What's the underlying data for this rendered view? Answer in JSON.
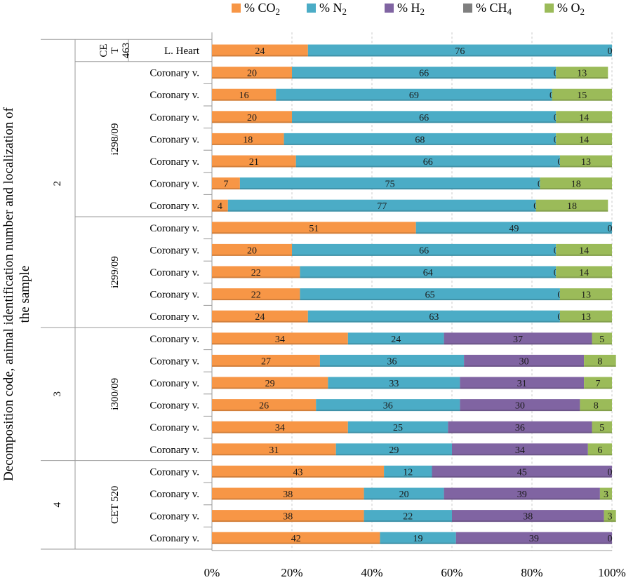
{
  "chart_data": {
    "type": "bar",
    "orientation": "horizontal",
    "stacked": "percent",
    "title": "",
    "ylabel": "Decomposition code, animal identification number and localization of the sample",
    "xlabel": "",
    "xlim": [
      0,
      100
    ],
    "xticks": [
      "0%",
      "20%",
      "40%",
      "60%",
      "80%",
      "100%"
    ],
    "legend_position": "top",
    "grid": true,
    "series": [
      {
        "name": "% CO",
        "sub": "2",
        "color": "#F79646",
        "values": [
          24,
          20,
          16,
          20,
          18,
          21,
          7,
          4,
          51,
          20,
          22,
          22,
          24,
          34,
          27,
          29,
          26,
          34,
          31,
          43,
          38,
          38,
          42
        ]
      },
      {
        "name": "% N",
        "sub": "2",
        "color": "#4BACC6",
        "values": [
          76,
          66,
          69,
          66,
          68,
          66,
          75,
          77,
          49,
          66,
          64,
          65,
          63,
          24,
          36,
          33,
          36,
          25,
          29,
          12,
          20,
          22,
          19
        ]
      },
      {
        "name": "% H",
        "sub": "2",
        "color": "#8064A2",
        "values": [
          0,
          0,
          0,
          0,
          0,
          0,
          0,
          0,
          0,
          0,
          0,
          0,
          0,
          37,
          30,
          31,
          30,
          36,
          34,
          45,
          39,
          38,
          39
        ]
      },
      {
        "name": "% CH",
        "sub": "4",
        "color": "#7F7F7F",
        "values": [
          0,
          0,
          0,
          0,
          0,
          0,
          0,
          0,
          0,
          0,
          0,
          0,
          0,
          0,
          0,
          0,
          0,
          0,
          0,
          0,
          0,
          0,
          0
        ]
      },
      {
        "name": "% O",
        "sub": "2",
        "color": "#9BBB59",
        "values": [
          0,
          13,
          15,
          14,
          14,
          13,
          18,
          18,
          0,
          14,
          14,
          13,
          13,
          5,
          8,
          7,
          8,
          5,
          6,
          0,
          3,
          3,
          0
        ]
      }
    ],
    "data_labels": [
      [
        "24",
        "76",
        "",
        "",
        "0"
      ],
      [
        "20",
        "66",
        "",
        "0",
        "13"
      ],
      [
        "16",
        "69",
        "",
        "0",
        "15"
      ],
      [
        "20",
        "66",
        "",
        "0",
        "14"
      ],
      [
        "18",
        "68",
        "",
        "0",
        "14"
      ],
      [
        "21",
        "66",
        "",
        "0",
        "13"
      ],
      [
        "7",
        "75",
        "",
        "0",
        "18"
      ],
      [
        "4",
        "77",
        "",
        "0",
        "18"
      ],
      [
        "51",
        "49",
        "",
        "",
        "0"
      ],
      [
        "20",
        "66",
        "",
        "0",
        "14"
      ],
      [
        "22",
        "64",
        "",
        "0",
        "14"
      ],
      [
        "22",
        "65",
        "",
        "0",
        "13"
      ],
      [
        "24",
        "63",
        "",
        "0",
        "13"
      ],
      [
        "34",
        "24",
        "37",
        "",
        "5"
      ],
      [
        "27",
        "36",
        "30",
        "",
        "8"
      ],
      [
        "29",
        "33",
        "31",
        "",
        "7"
      ],
      [
        "26",
        "36",
        "30",
        "",
        "8"
      ],
      [
        "34",
        "25",
        "36",
        "",
        "5"
      ],
      [
        "31",
        "29",
        "34",
        "",
        "6"
      ],
      [
        "43",
        "12",
        "45",
        "",
        "0"
      ],
      [
        "38",
        "20",
        "39",
        "",
        "3"
      ],
      [
        "38",
        "22",
        "38",
        "",
        "3"
      ],
      [
        "42",
        "19",
        "39",
        "",
        "0"
      ]
    ],
    "categories": [
      "L. Heart",
      "Coronary v.",
      "Coronary v.",
      "Coronary v.",
      "Coronary v.",
      "Coronary v.",
      "Coronary v.",
      "Coronary v.",
      "Coronary v.",
      "Coronary v.",
      "Coronary v.",
      "Coronary v.",
      "Coronary v.",
      "Coronary v.",
      "Coronary v.",
      "Coronary v.",
      "Coronary v.",
      "Coronary v.",
      "Coronary v.",
      "Coronary v.",
      "Coronary v.",
      "Coronary v.",
      "Coronary v."
    ],
    "animal_groups": [
      {
        "label_lines": [
          "CE",
          "T",
          "463"
        ],
        "start": 0,
        "end": 0
      },
      {
        "label_lines": [
          "i298/09"
        ],
        "start": 1,
        "end": 7
      },
      {
        "label_lines": [
          "i299/09"
        ],
        "start": 8,
        "end": 12
      },
      {
        "label_lines": [
          "i300/09"
        ],
        "start": 13,
        "end": 18
      },
      {
        "label_lines": [
          "CET 520"
        ],
        "start": 19,
        "end": 22
      }
    ],
    "decomposition_groups": [
      {
        "label": "2",
        "start": 0,
        "end": 12
      },
      {
        "label": "3",
        "start": 13,
        "end": 18
      },
      {
        "label": "4",
        "start": 19,
        "end": 22
      }
    ]
  }
}
